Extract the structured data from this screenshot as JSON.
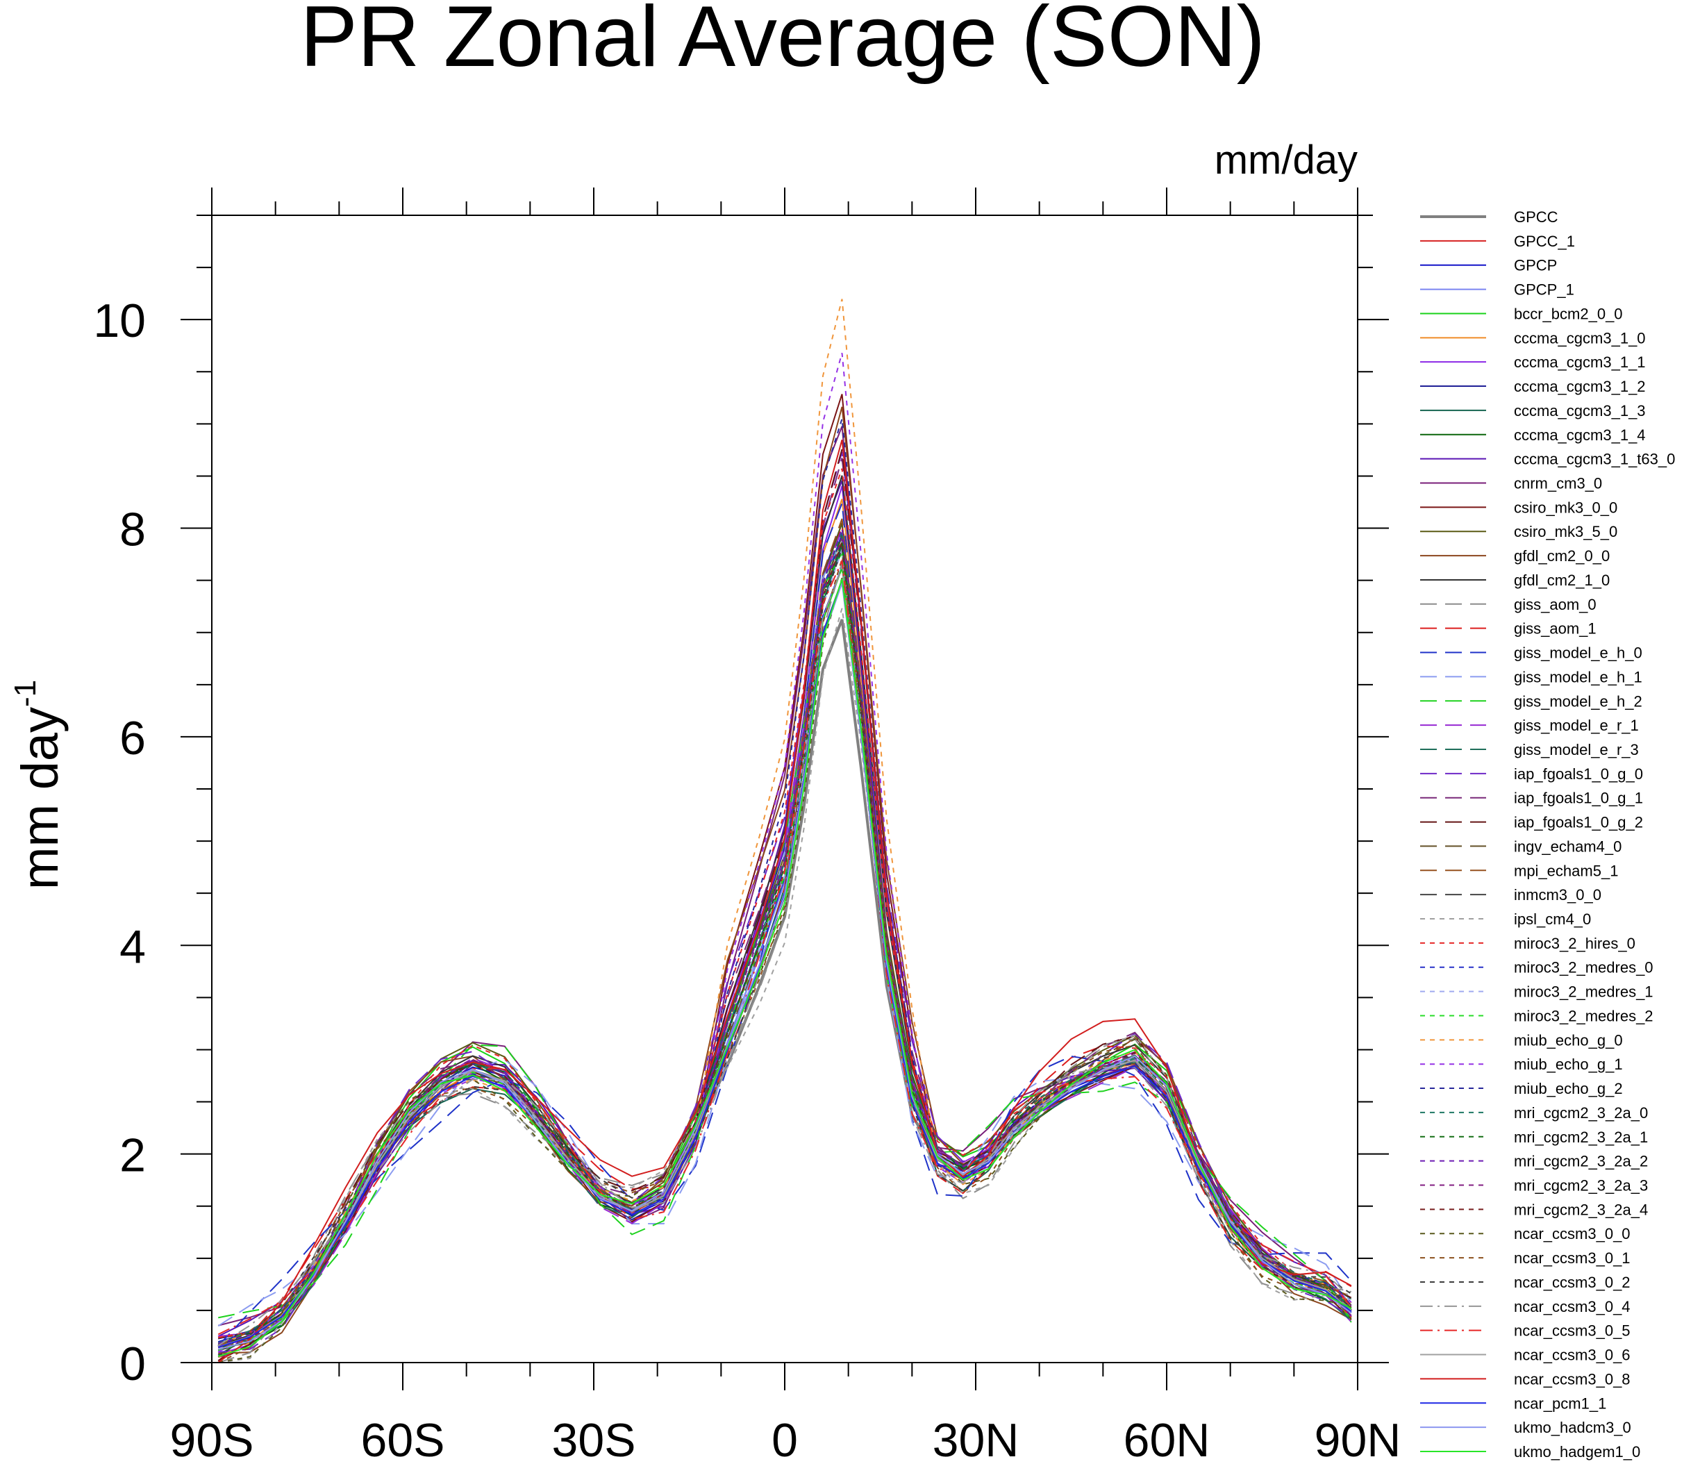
{
  "chart_data": {
    "type": "line",
    "title": "PR Zonal Average (SON)",
    "units": "mm/day",
    "ylabel": "mm day",
    "ylabel_superscript": "-1",
    "xlim": [
      -90,
      90
    ],
    "ylim": [
      0,
      11
    ],
    "x_ticks": [
      {
        "value": -90,
        "label": "90S"
      },
      {
        "value": -60,
        "label": "60S"
      },
      {
        "value": -30,
        "label": "30S"
      },
      {
        "value": 0,
        "label": "0"
      },
      {
        "value": 30,
        "label": "30N"
      },
      {
        "value": 60,
        "label": "60N"
      },
      {
        "value": 90,
        "label": "90N"
      }
    ],
    "y_ticks": [
      {
        "value": 0,
        "label": "0"
      },
      {
        "value": 2,
        "label": "2"
      },
      {
        "value": 4,
        "label": "4"
      },
      {
        "value": 6,
        "label": "6"
      },
      {
        "value": 8,
        "label": "8"
      },
      {
        "value": 10,
        "label": "10"
      }
    ],
    "grid": false,
    "legend_position": "right",
    "base_x": [
      -89,
      -84,
      -79,
      -74,
      -69,
      -64,
      -59,
      -54,
      -49,
      -44,
      -39,
      -34,
      -29,
      -24,
      -19,
      -14,
      -9,
      -4,
      0,
      3,
      6,
      9,
      12,
      16,
      20,
      24,
      28,
      32,
      36,
      40,
      45,
      50,
      55,
      60,
      65,
      70,
      75,
      80,
      85,
      89
    ],
    "base_y": [
      0.15,
      0.25,
      0.45,
      0.85,
      1.35,
      1.9,
      2.35,
      2.65,
      2.8,
      2.7,
      2.35,
      1.95,
      1.6,
      1.45,
      1.6,
      2.2,
      3.0,
      3.8,
      4.5,
      5.6,
      7.0,
      7.5,
      6.0,
      3.8,
      2.5,
      1.95,
      1.8,
      1.95,
      2.25,
      2.45,
      2.65,
      2.8,
      2.9,
      2.6,
      1.9,
      1.35,
      1.0,
      0.8,
      0.7,
      0.5
    ],
    "series": [
      {
        "name": "GPCC",
        "color": "#808080",
        "dash": "solid",
        "offset": 0.0,
        "scale": 1.0,
        "peak": 0.95
      },
      {
        "name": "GPCC_1",
        "color": "#d62020",
        "dash": "solid",
        "offset": 0.0,
        "scale": 1.0,
        "peak": 1.0
      },
      {
        "name": "GPCP",
        "color": "#1414c8",
        "dash": "solid",
        "offset": 0.05,
        "scale": 1.0,
        "peak": 1.02
      },
      {
        "name": "GPCP_1",
        "color": "#7b85f0",
        "dash": "solid",
        "offset": 0.02,
        "scale": 1.02,
        "peak": 1.0
      },
      {
        "name": "bccr_bcm2_0_0",
        "color": "#19d219",
        "dash": "solid",
        "offset": 0.1,
        "scale": 1.05,
        "peak": 0.98
      },
      {
        "name": "cccma_cgcm3_1_0",
        "color": "#f08c28",
        "dash": "solid",
        "offset": -0.05,
        "scale": 1.0,
        "peak": 1.1
      },
      {
        "name": "cccma_cgcm3_1_1",
        "color": "#8c28e6",
        "dash": "solid",
        "offset": 0.08,
        "scale": 1.0,
        "peak": 1.12
      },
      {
        "name": "cccma_cgcm3_1_2",
        "color": "#1e1e96",
        "dash": "solid",
        "offset": -0.08,
        "scale": 1.0,
        "peak": 1.08
      },
      {
        "name": "cccma_cgcm3_1_3",
        "color": "#146450",
        "dash": "solid",
        "offset": 0.12,
        "scale": 0.98,
        "peak": 1.05
      },
      {
        "name": "cccma_cgcm3_1_4",
        "color": "#0a640a",
        "dash": "solid",
        "offset": -0.1,
        "scale": 1.0,
        "peak": 1.07
      },
      {
        "name": "cccma_cgcm3_1_t63_0",
        "color": "#5a14b4",
        "dash": "solid",
        "offset": 0.15,
        "scale": 1.02,
        "peak": 1.1
      },
      {
        "name": "cnrm_cm3_0",
        "color": "#781e78",
        "dash": "solid",
        "offset": 0.2,
        "scale": 1.05,
        "peak": 1.15
      },
      {
        "name": "csiro_mk3_0_0",
        "color": "#7a1414",
        "dash": "solid",
        "offset": 0.1,
        "scale": 1.0,
        "peak": 1.25
      },
      {
        "name": "csiro_mk3_5_0",
        "color": "#5a5a14",
        "dash": "solid",
        "offset": 0.05,
        "scale": 1.08,
        "peak": 1.0
      },
      {
        "name": "gfdl_cm2_0_0",
        "color": "#8c461e",
        "dash": "solid",
        "offset": 0.18,
        "scale": 1.03,
        "peak": 1.2
      },
      {
        "name": "gfdl_cm2_1_0",
        "color": "#323232",
        "dash": "solid",
        "offset": 0.0,
        "scale": 1.05,
        "peak": 1.08
      },
      {
        "name": "giss_aom_0",
        "color": "#8c8c8c",
        "dash": "long",
        "offset": 0.25,
        "scale": 1.0,
        "peak": 1.0
      },
      {
        "name": "giss_aom_1",
        "color": "#dc1e1e",
        "dash": "long",
        "offset": 0.22,
        "scale": 1.02,
        "peak": 1.02
      },
      {
        "name": "giss_model_e_h_0",
        "color": "#1e32c8",
        "dash": "long",
        "offset": 0.35,
        "scale": 1.0,
        "peak": 1.06
      },
      {
        "name": "giss_model_e_h_1",
        "color": "#8c9cf0",
        "dash": "long",
        "offset": 0.3,
        "scale": 1.0,
        "peak": 1.04
      },
      {
        "name": "giss_model_e_h_2",
        "color": "#1ed21e",
        "dash": "long",
        "offset": 0.28,
        "scale": 1.02,
        "peak": 1.03
      },
      {
        "name": "giss_model_e_r_1",
        "color": "#9628d2",
        "dash": "long",
        "offset": 0.12,
        "scale": 1.0,
        "peak": 1.08
      },
      {
        "name": "giss_model_e_r_3",
        "color": "#1e6e5a",
        "dash": "long",
        "offset": 0.1,
        "scale": 1.0,
        "peak": 1.06
      },
      {
        "name": "iap_fgoals1_0_g_0",
        "color": "#6e28c8",
        "dash": "long",
        "offset": 0.15,
        "scale": 1.05,
        "peak": 1.12
      },
      {
        "name": "iap_fgoals1_0_g_1",
        "color": "#782878",
        "dash": "long",
        "offset": 0.12,
        "scale": 1.05,
        "peak": 1.1
      },
      {
        "name": "iap_fgoals1_0_g_2",
        "color": "#641414",
        "dash": "long",
        "offset": 0.14,
        "scale": 1.04,
        "peak": 1.11
      },
      {
        "name": "ingv_echam4_0",
        "color": "#645028",
        "dash": "long",
        "offset": 0.05,
        "scale": 1.0,
        "peak": 1.05
      },
      {
        "name": "mpi_echam5_1",
        "color": "#96501e",
        "dash": "long",
        "offset": 0.08,
        "scale": 1.0,
        "peak": 1.07
      },
      {
        "name": "inmcm3_0_0",
        "color": "#464646",
        "dash": "long",
        "offset": -0.05,
        "scale": 1.0,
        "peak": 1.0
      },
      {
        "name": "ipsl_cm4_0",
        "color": "#a0a0a0",
        "dash": "short",
        "offset": -0.25,
        "scale": 1.0,
        "peak": 0.95
      },
      {
        "name": "miroc3_2_hires_0",
        "color": "#e62828",
        "dash": "short",
        "offset": 0.1,
        "scale": 1.05,
        "peak": 1.1
      },
      {
        "name": "miroc3_2_medres_0",
        "color": "#2832c8",
        "dash": "short",
        "offset": 0.0,
        "scale": 1.0,
        "peak": 1.06
      },
      {
        "name": "miroc3_2_medres_1",
        "color": "#a0aaf0",
        "dash": "short",
        "offset": 0.02,
        "scale": 1.0,
        "peak": 1.04
      },
      {
        "name": "miroc3_2_medres_2",
        "color": "#28dc28",
        "dash": "short",
        "offset": 0.04,
        "scale": 1.0,
        "peak": 1.05
      },
      {
        "name": "miub_echo_g_0",
        "color": "#f0963c",
        "dash": "short",
        "offset": 0.1,
        "scale": 1.0,
        "peak": 1.35
      },
      {
        "name": "miub_echo_g_1",
        "color": "#9632e6",
        "dash": "short",
        "offset": 0.08,
        "scale": 1.0,
        "peak": 1.28
      },
      {
        "name": "miub_echo_g_2",
        "color": "#28289b",
        "dash": "short",
        "offset": 0.06,
        "scale": 1.0,
        "peak": 1.2
      },
      {
        "name": "mri_cgcm2_3_2a_0",
        "color": "#1e7864",
        "dash": "short",
        "offset": 0.05,
        "scale": 1.02,
        "peak": 1.04
      },
      {
        "name": "mri_cgcm2_3_2a_1",
        "color": "#146e14",
        "dash": "short",
        "offset": 0.03,
        "scale": 1.02,
        "peak": 1.03
      },
      {
        "name": "mri_cgcm2_3_2a_2",
        "color": "#6e1eb4",
        "dash": "short",
        "offset": 0.04,
        "scale": 1.02,
        "peak": 1.05
      },
      {
        "name": "mri_cgcm2_3_2a_3",
        "color": "#821e82",
        "dash": "short",
        "offset": 0.06,
        "scale": 1.02,
        "peak": 1.04
      },
      {
        "name": "mri_cgcm2_3_2a_4",
        "color": "#781e1e",
        "dash": "short",
        "offset": 0.02,
        "scale": 1.02,
        "peak": 1.03
      },
      {
        "name": "ncar_ccsm3_0_0",
        "color": "#5a5a1e",
        "dash": "short",
        "offset": 0.2,
        "scale": 1.0,
        "peak": 1.0
      },
      {
        "name": "ncar_ccsm3_0_1",
        "color": "#8c501e",
        "dash": "short",
        "offset": 0.18,
        "scale": 1.0,
        "peak": 1.01
      },
      {
        "name": "ncar_ccsm3_0_2",
        "color": "#3c3c3c",
        "dash": "short",
        "offset": 0.16,
        "scale": 1.0,
        "peak": 1.02
      },
      {
        "name": "ncar_ccsm3_0_4",
        "color": "#969696",
        "dash": "dashdot",
        "offset": 0.15,
        "scale": 1.0,
        "peak": 1.0
      },
      {
        "name": "ncar_ccsm3_0_5",
        "color": "#e62828",
        "dash": "dashdot",
        "offset": 0.17,
        "scale": 1.0,
        "peak": 1.02
      },
      {
        "name": "ncar_ccsm3_0_6",
        "color": "#a0a0a0",
        "dash": "solid",
        "offset": 0.0,
        "scale": 1.0,
        "peak": 1.0
      },
      {
        "name": "ncar_ccsm3_0_8",
        "color": "#d21e1e",
        "dash": "solid",
        "offset": -0.2,
        "scale": 1.1,
        "peak": 1.05
      },
      {
        "name": "ncar_pcm1_1",
        "color": "#1e28e6",
        "dash": "solid",
        "offset": 0.0,
        "scale": 0.98,
        "peak": 1.02
      },
      {
        "name": "ukmo_hadcm3_0",
        "color": "#8c96f0",
        "dash": "solid",
        "offset": 0.05,
        "scale": 1.0,
        "peak": 1.0
      },
      {
        "name": "ukmo_hadgem1_0",
        "color": "#28e628",
        "dash": "solid",
        "offset": 0.1,
        "scale": 1.0,
        "peak": 1.0
      }
    ]
  }
}
